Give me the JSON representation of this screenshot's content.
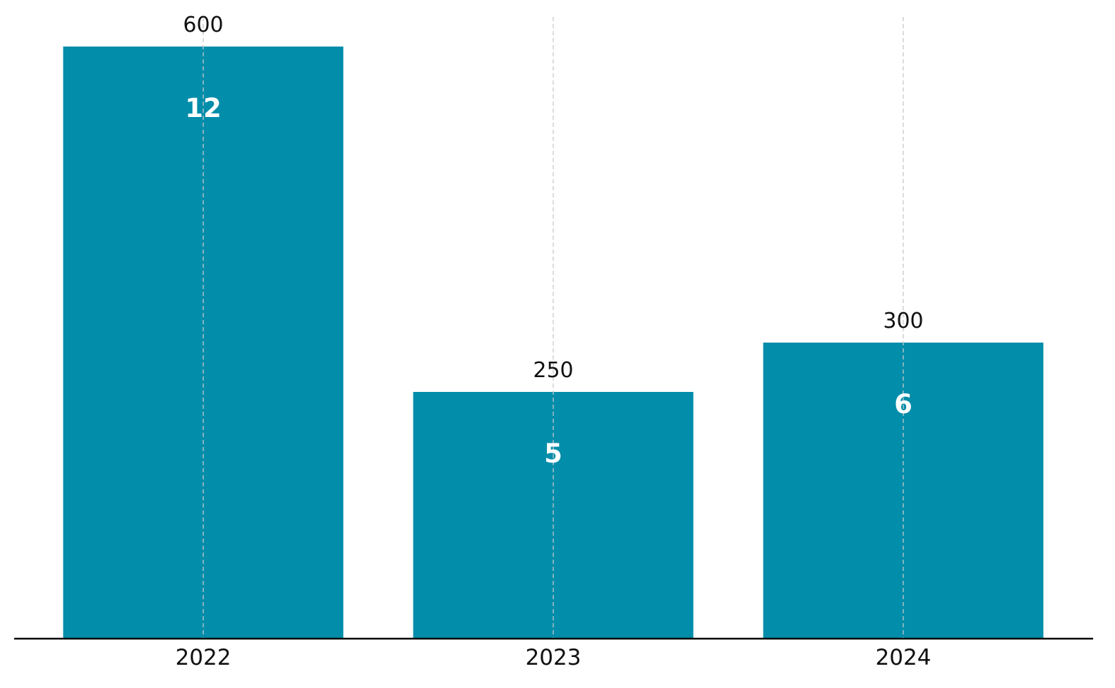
{
  "colors": {
    "bar": "#028daa",
    "inner_label": "#ffffff",
    "outer_label": "#111111",
    "gridline": "#c8c8c8",
    "baseline": "#000000"
  },
  "chart_data": {
    "type": "bar",
    "categories": [
      "2022",
      "2023",
      "2024"
    ],
    "values": [
      600,
      250,
      300
    ],
    "value_labels": [
      "600",
      "250",
      "300"
    ],
    "inner_labels": [
      "12",
      "5",
      "6"
    ],
    "title": "",
    "xlabel": "",
    "ylabel": "",
    "ylim": [
      0,
      630
    ],
    "grid": "vertical dashed at category centers",
    "legend": "none",
    "y_axis_visible": false
  }
}
